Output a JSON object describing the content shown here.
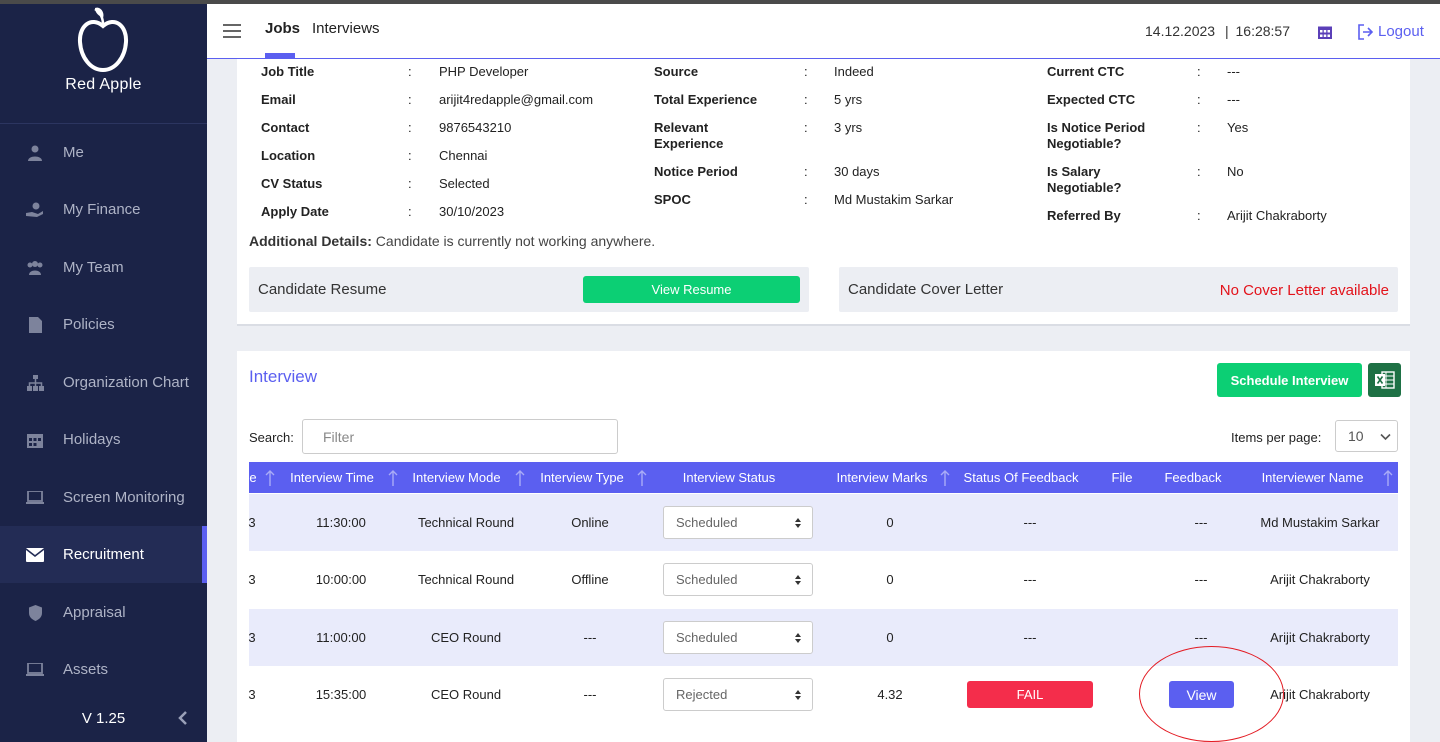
{
  "sidebar": {
    "brand": "Red Apple",
    "items": [
      {
        "label": "Me",
        "icon": "user-icon"
      },
      {
        "label": "My Finance",
        "icon": "finance-icon"
      },
      {
        "label": "My Team",
        "icon": "team-icon"
      },
      {
        "label": "Policies",
        "icon": "document-icon"
      },
      {
        "label": "Organization Chart",
        "icon": "org-chart-icon"
      },
      {
        "label": "Holidays",
        "icon": "calendar-icon"
      },
      {
        "label": "Screen Monitoring",
        "icon": "laptop-icon"
      },
      {
        "label": "Recruitment",
        "icon": "envelope-icon",
        "active": true
      },
      {
        "label": "Appraisal",
        "icon": "shield-icon"
      },
      {
        "label": "Assets",
        "icon": "laptop-icon"
      }
    ],
    "version": "V 1.25"
  },
  "header": {
    "tabs": [
      "Jobs",
      "Interviews"
    ],
    "active_tab": "Jobs",
    "date": "14.12.2023",
    "time_sep": "|",
    "time": "16:28:57",
    "logout": "Logout"
  },
  "candidate": {
    "col1": [
      {
        "label": "Job Title",
        "value": "PHP Developer"
      },
      {
        "label": "Email",
        "value": "arijit4redapple@gmail.com"
      },
      {
        "label": "Contact",
        "value": "9876543210"
      },
      {
        "label": "Location",
        "value": "Chennai"
      },
      {
        "label": "CV Status",
        "value": "Selected"
      },
      {
        "label": "Apply Date",
        "value": "30/10/2023"
      }
    ],
    "col2": [
      {
        "label": "Source",
        "value": "Indeed"
      },
      {
        "label": "Total Experience",
        "value": "5 yrs"
      },
      {
        "label": "Relevant Experience",
        "value": "3 yrs"
      },
      {
        "label": "Notice Period",
        "value": "30 days"
      },
      {
        "label": "SPOC",
        "value": "Md Mustakim Sarkar"
      }
    ],
    "col3": [
      {
        "label": "Current CTC",
        "value": "---"
      },
      {
        "label": "Expected CTC",
        "value": "---"
      },
      {
        "label": "Is Notice Period Negotiable?",
        "value": "Yes"
      },
      {
        "label": "Is Salary Negotiable?",
        "value": "No"
      },
      {
        "label": "Referred By",
        "value": "Arijit Chakraborty"
      }
    ],
    "colon": ":",
    "additional_label": "Additional Details:",
    "additional_value": "Candidate is currently not working anywhere.",
    "resume_label": "Candidate Resume",
    "resume_button": "View Resume",
    "cover_label": "Candidate Cover Letter",
    "cover_status": "No Cover Letter available"
  },
  "interview": {
    "title": "Interview",
    "schedule_button": "Schedule Interview",
    "search_label": "Search:",
    "search_placeholder": "Filter",
    "items_per_page_label": "Items per page:",
    "items_per_page": "10",
    "columns": [
      "e",
      "Interview Time",
      "Interview Mode",
      "Interview Type",
      "Interview Status",
      "Interview Marks",
      "Status Of Feedback",
      "File",
      "Feedback",
      "Interviewer Name"
    ],
    "rows": [
      {
        "date": "3",
        "time": "11:30:00",
        "mode": "Technical Round",
        "type": "Online",
        "status": "Scheduled",
        "marks": "0",
        "feedback_status": "---",
        "feedback": "---",
        "interviewer": "Md Mustakim Sarkar"
      },
      {
        "date": "3",
        "time": "10:00:00",
        "mode": "Technical Round",
        "type": "Offline",
        "status": "Scheduled",
        "marks": "0",
        "feedback_status": "---",
        "feedback": "---",
        "interviewer": "Arijit Chakraborty"
      },
      {
        "date": "3",
        "time": "11:00:00",
        "mode": "CEO Round",
        "type": "---",
        "status": "Scheduled",
        "marks": "0",
        "feedback_status": "---",
        "feedback": "---",
        "interviewer": "Arijit Chakraborty"
      },
      {
        "date": "3",
        "time": "15:35:00",
        "mode": "CEO Round",
        "type": "---",
        "status": "Rejected",
        "marks": "4.32",
        "feedback_status": "FAIL",
        "feedback": "View",
        "interviewer": "Arijit Chakraborty"
      }
    ]
  },
  "colors": {
    "accent": "#5b5ff0",
    "sidebar": "#1b2347",
    "green": "#0ccf74",
    "fail": "#f42d4b",
    "annotation": "#e31b23"
  }
}
